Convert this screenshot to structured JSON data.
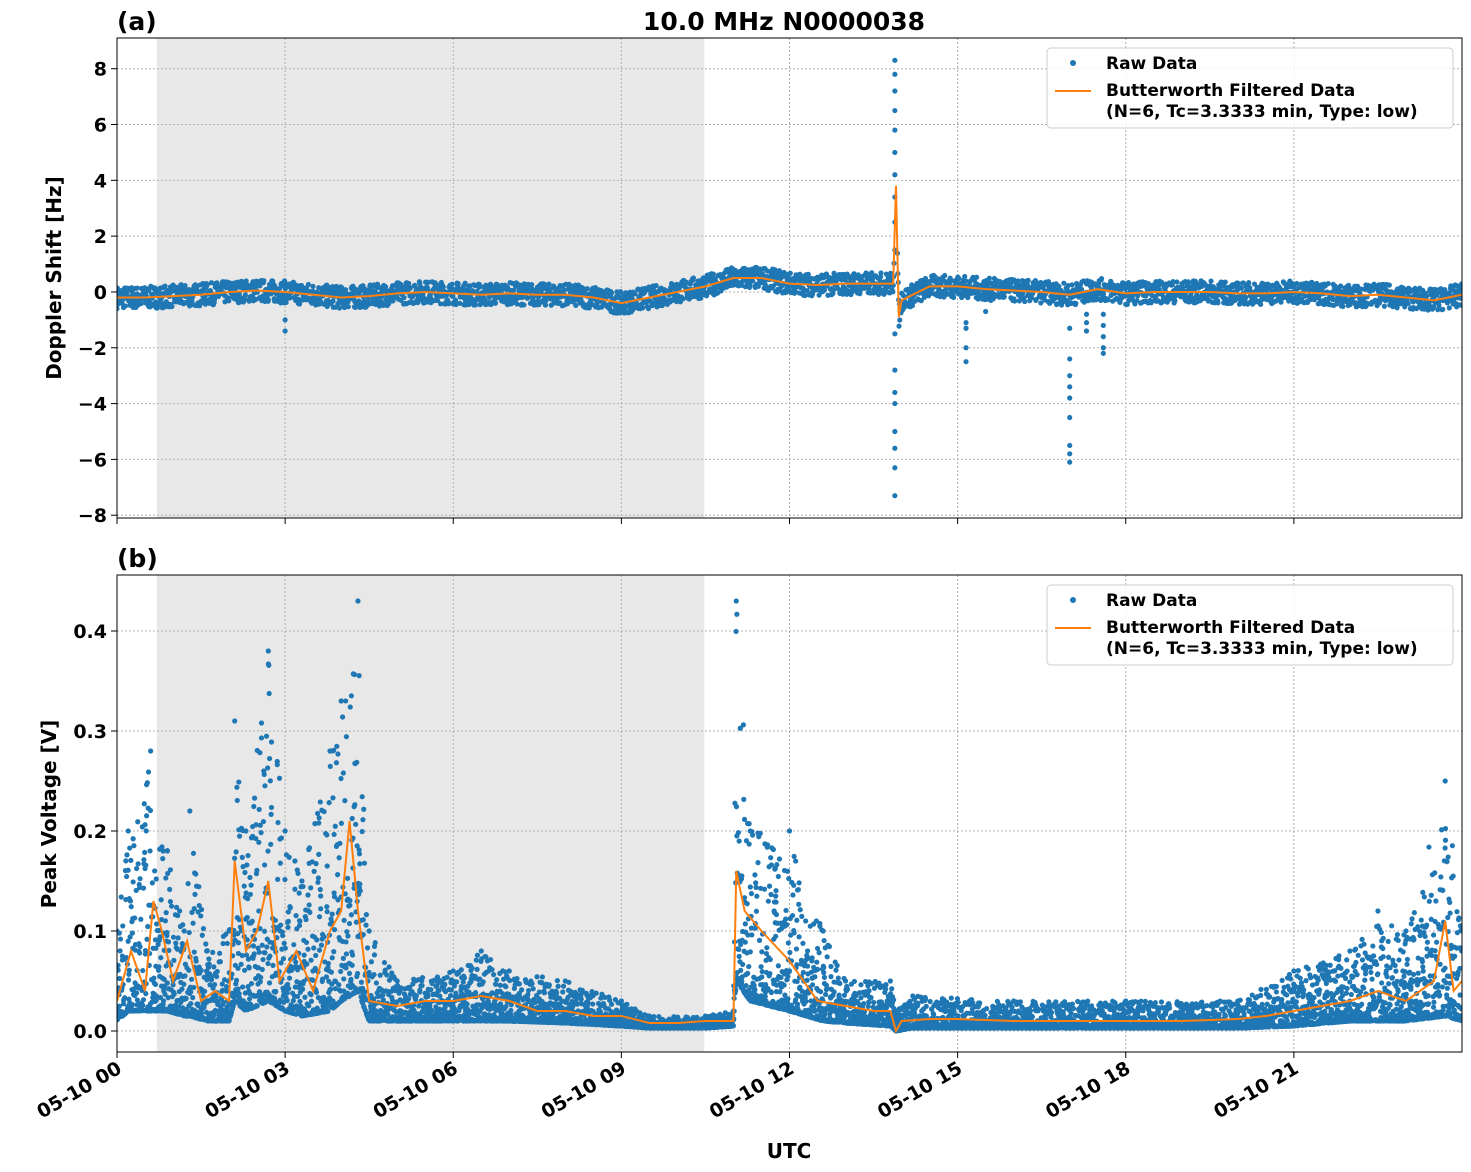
{
  "chart_data": [
    {
      "type": "scatter+line",
      "panel_label": "(a)",
      "title": "10.0 MHz N0000038",
      "ylabel": "Doppler Shift [Hz]",
      "xlabel": "",
      "xlim_hours": [
        0,
        24
      ],
      "ylim": [
        -8.1,
        9.1
      ],
      "yticks": [
        -8,
        -6,
        -4,
        -2,
        0,
        2,
        4,
        6,
        8
      ],
      "ytick_labels": [
        "−8",
        "−6",
        "−4",
        "−2",
        "0",
        "2",
        "4",
        "6",
        "8"
      ],
      "grid": true,
      "shaded_interval_hours": [
        0.71,
        10.48
      ],
      "shade_color": "#e8e8e8",
      "legend": {
        "placement": "top-right",
        "entries": [
          "Raw Data",
          "Butterworth Filtered Data",
          "(N=6, Tc=3.3333 min, Type: low)"
        ]
      },
      "colors": {
        "raw": "#1f77b4",
        "filtered": "#ff7f0e"
      },
      "filtered": {
        "x": [
          0,
          0.5,
          1,
          1.5,
          2,
          2.5,
          3,
          3.5,
          4,
          4.5,
          5,
          5.5,
          6,
          6.5,
          7,
          7.5,
          8,
          8.5,
          9,
          9.5,
          10,
          10.5,
          11,
          11.5,
          12,
          12.5,
          13,
          13.5,
          13.85,
          13.9,
          13.95,
          14,
          14.5,
          15,
          15.5,
          16,
          16.5,
          17,
          17.5,
          18,
          18.5,
          19,
          19.5,
          20,
          20.5,
          21,
          21.5,
          22,
          22.5,
          23,
          23.5,
          24
        ],
        "y": [
          -0.2,
          -0.2,
          -0.15,
          -0.1,
          0,
          0.05,
          0,
          -0.1,
          -0.2,
          -0.15,
          -0.05,
          0,
          -0.05,
          -0.1,
          -0.05,
          -0.1,
          -0.1,
          -0.2,
          -0.4,
          -0.2,
          0,
          0.2,
          0.5,
          0.5,
          0.3,
          0.25,
          0.3,
          0.3,
          0.3,
          3.8,
          -0.9,
          -0.3,
          0.2,
          0.2,
          0.1,
          0.05,
          0,
          -0.1,
          0.1,
          -0.05,
          0,
          0,
          0,
          -0.05,
          -0.05,
          0,
          -0.05,
          -0.15,
          -0.1,
          -0.2,
          -0.3,
          -0.1
        ]
      },
      "raw_band_halfwidth": 0.4,
      "raw_outliers": {
        "x": [
          3.0,
          3.0,
          13.88,
          13.88,
          13.88,
          13.88,
          13.88,
          13.88,
          13.88,
          13.88,
          13.88,
          13.88,
          13.88,
          13.88,
          13.88,
          13.88,
          13.88,
          13.88,
          13.88,
          13.88,
          15.15,
          15.15,
          15.15,
          15.15,
          15.5,
          17.0,
          17.0,
          17.0,
          17.0,
          17.0,
          17.0,
          17.0,
          17.0,
          17.0,
          17.3,
          17.3,
          17.3,
          17.6,
          17.6,
          17.6,
          17.6,
          17.6
        ],
        "y": [
          -1.0,
          -1.4,
          8.3,
          7.8,
          7.2,
          6.5,
          5.8,
          5.0,
          4.2,
          3.4,
          2.5,
          1.5,
          -1.5,
          -2.8,
          -3.6,
          -4.0,
          -5.0,
          -5.6,
          -6.3,
          -7.3,
          -1.1,
          -1.3,
          -2.0,
          -2.5,
          -0.7,
          -1.3,
          -2.4,
          -3.0,
          -3.4,
          -3.8,
          -4.5,
          -5.5,
          -5.8,
          -6.1,
          -0.8,
          -1.1,
          -1.4,
          -0.8,
          -1.2,
          -1.6,
          -2.0,
          -2.2
        ]
      }
    },
    {
      "type": "scatter+line",
      "panel_label": "(b)",
      "title": "",
      "ylabel": "Peak Voltage [V]",
      "xlabel": "UTC",
      "xlim_hours": [
        0,
        24
      ],
      "ylim": [
        -0.021,
        0.456
      ],
      "yticks": [
        0,
        0.1,
        0.2,
        0.3,
        0.4
      ],
      "ytick_labels": [
        "0.0",
        "0.1",
        "0.2",
        "0.3",
        "0.4"
      ],
      "xtick_hours": [
        0,
        3,
        6,
        9,
        12,
        15,
        18,
        21
      ],
      "xtick_labels": [
        "05-10 00",
        "05-10 03",
        "05-10 06",
        "05-10 09",
        "05-10 12",
        "05-10 15",
        "05-10 18",
        "05-10 21"
      ],
      "grid": true,
      "shaded_interval_hours": [
        0.71,
        10.48
      ],
      "legend": {
        "placement": "top-right",
        "entries": [
          "Raw Data",
          "Butterworth Filtered Data",
          "(N=6, Tc=3.3333 min, Type: low)"
        ]
      },
      "filtered": {
        "x": [
          0,
          0.25,
          0.5,
          0.65,
          0.8,
          1,
          1.25,
          1.5,
          1.75,
          2,
          2.1,
          2.3,
          2.5,
          2.7,
          2.9,
          3.2,
          3.5,
          3.8,
          4,
          4.15,
          4.3,
          4.5,
          5,
          5.5,
          6,
          6.5,
          7,
          7.5,
          8,
          8.5,
          9,
          9.5,
          10,
          10.5,
          11,
          11.05,
          11.2,
          11.5,
          12,
          12.5,
          13,
          13.5,
          13.8,
          13.9,
          14,
          14.5,
          15,
          16,
          17,
          18,
          19,
          20,
          20.5,
          21,
          21.5,
          22,
          22.5,
          23,
          23.5,
          23.7,
          23.85,
          24
        ],
        "y": [
          0.03,
          0.08,
          0.04,
          0.13,
          0.1,
          0.05,
          0.09,
          0.03,
          0.04,
          0.03,
          0.17,
          0.08,
          0.1,
          0.15,
          0.05,
          0.08,
          0.04,
          0.1,
          0.12,
          0.21,
          0.12,
          0.03,
          0.025,
          0.03,
          0.03,
          0.035,
          0.03,
          0.02,
          0.02,
          0.015,
          0.015,
          0.008,
          0.008,
          0.01,
          0.01,
          0.16,
          0.12,
          0.1,
          0.07,
          0.03,
          0.025,
          0.02,
          0.02,
          0.0,
          0.01,
          0.012,
          0.012,
          0.01,
          0.01,
          0.01,
          0.01,
          0.012,
          0.015,
          0.02,
          0.025,
          0.03,
          0.04,
          0.03,
          0.05,
          0.11,
          0.04,
          0.05
        ]
      },
      "raw_envelope": {
        "x": [
          0,
          0.2,
          0.6,
          0.9,
          1.2,
          1.3,
          1.6,
          2.0,
          2.1,
          2.3,
          2.7,
          3.0,
          3.3,
          3.8,
          4.0,
          4.3,
          4.5,
          5,
          6,
          6.5,
          7,
          8,
          9,
          9.5,
          10.5,
          11.0,
          11.05,
          11.3,
          12,
          12.6,
          13,
          13.8,
          13.9,
          14.2,
          16,
          18,
          20,
          21,
          22,
          22.5,
          23,
          23.7,
          24
        ],
        "high": [
          0.1,
          0.2,
          0.28,
          0.18,
          0.1,
          0.22,
          0.08,
          0.1,
          0.31,
          0.2,
          0.38,
          0.2,
          0.15,
          0.28,
          0.33,
          0.43,
          0.1,
          0.05,
          0.06,
          0.08,
          0.06,
          0.05,
          0.03,
          0.015,
          0.015,
          0.02,
          0.43,
          0.2,
          0.2,
          0.1,
          0.05,
          0.05,
          0.02,
          0.035,
          0.03,
          0.03,
          0.03,
          0.06,
          0.08,
          0.12,
          0.1,
          0.25,
          0.1
        ],
        "low": [
          0.01,
          0.02,
          0.02,
          0.02,
          0.015,
          0.015,
          0.01,
          0.01,
          0.03,
          0.02,
          0.03,
          0.02,
          0.015,
          0.02,
          0.03,
          0.04,
          0.01,
          0.01,
          0.01,
          0.01,
          0.01,
          0.008,
          0.005,
          0.003,
          0.003,
          0.005,
          0.05,
          0.03,
          0.02,
          0.01,
          0.008,
          0.005,
          0.0,
          0.003,
          0.003,
          0.003,
          0.003,
          0.005,
          0.01,
          0.01,
          0.01,
          0.015,
          0.01
        ]
      }
    }
  ]
}
